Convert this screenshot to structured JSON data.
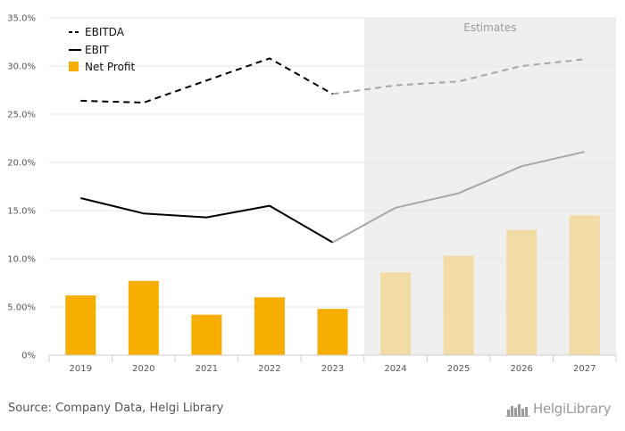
{
  "chart_data": {
    "type": "bar+line",
    "categories": [
      "2019",
      "2020",
      "2021",
      "2022",
      "2023",
      "2024",
      "2025",
      "2026",
      "2027"
    ],
    "y_ticks": [
      "0%",
      "5.00%",
      "10.0%",
      "15.0%",
      "20.0%",
      "25.0%",
      "30.0%",
      "35.0%"
    ],
    "ylim": [
      0,
      35
    ],
    "legend_position": "top-left",
    "series": [
      {
        "name": "EBITDA",
        "kind": "line",
        "style": "dashed",
        "values": [
          26.4,
          26.2,
          28.5,
          30.8,
          27.1,
          28.0,
          28.4,
          30.0,
          30.7
        ]
      },
      {
        "name": "EBIT",
        "kind": "line",
        "style": "solid",
        "values": [
          16.3,
          14.7,
          14.3,
          15.5,
          11.7,
          15.3,
          16.8,
          19.6,
          21.1
        ]
      },
      {
        "name": "Net Profit",
        "kind": "bar",
        "values": [
          6.2,
          7.7,
          4.2,
          6.0,
          4.8,
          8.6,
          10.3,
          13.0,
          14.5
        ]
      }
    ],
    "estimates_label": "Estimates",
    "estimates_from_index": 5,
    "colors": {
      "bar": "#f7ae00",
      "bar_estimate": "#f3dba5",
      "line": "#000000",
      "ebitda_estimate": "#a6a6a6",
      "ebit_estimate": "#a8a8a8",
      "estimate_shade": "#efefef",
      "grid": "#e6e6e6"
    }
  },
  "footer": {
    "source": "Source: Company Data, Helgi Library",
    "logo_text": "HelgiLibrary",
    "logo_icon": "library-icon"
  }
}
